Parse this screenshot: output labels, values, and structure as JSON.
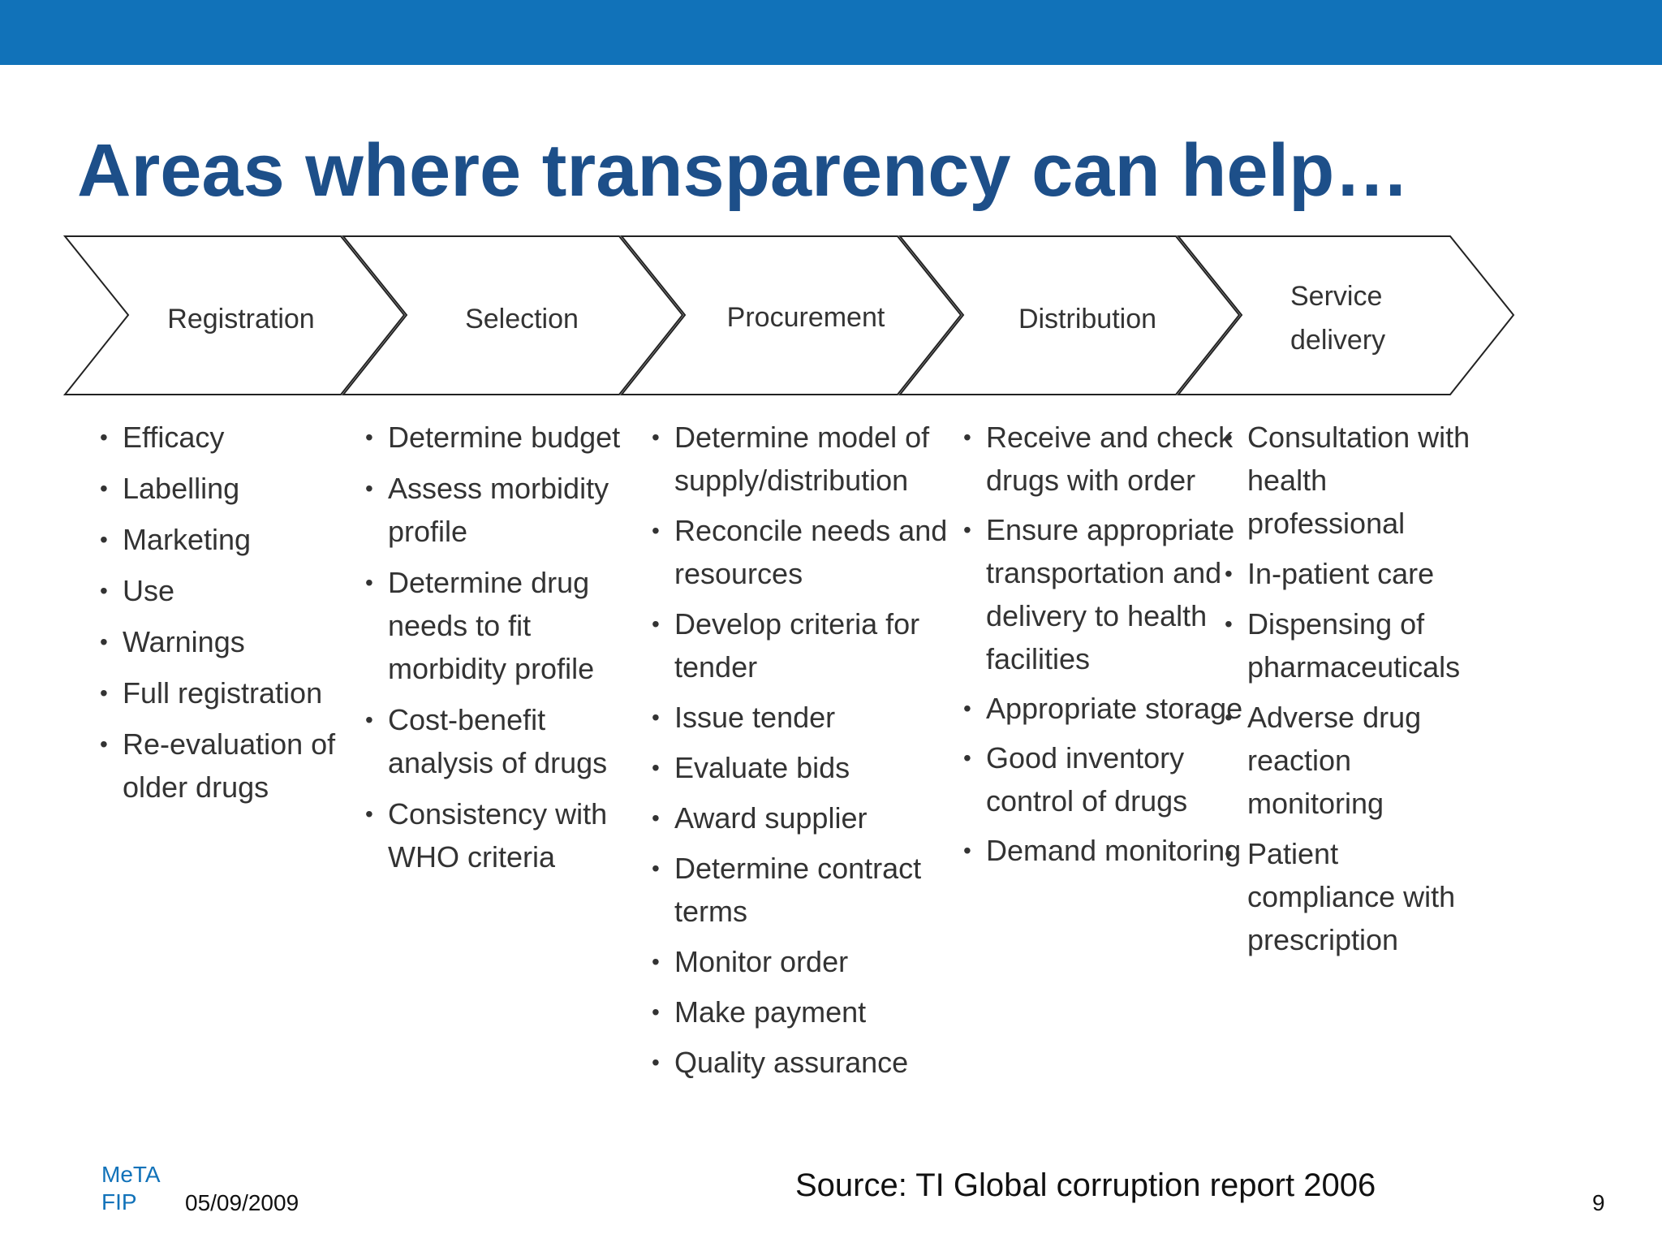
{
  "header": {
    "title": "Areas where transparency can help…"
  },
  "stages": [
    {
      "label": "Registration",
      "items": [
        "Efficacy",
        "Labelling",
        "Marketing",
        "Use",
        "Warnings",
        "Full registration",
        "Re-evaluation of older drugs"
      ]
    },
    {
      "label": "Selection",
      "items": [
        "Determine budget",
        "Assess morbidity profile",
        "Determine drug needs to fit morbidity profile",
        "Cost-benefit analysis of drugs",
        "Consistency with WHO criteria"
      ]
    },
    {
      "label": "Procurement",
      "items": [
        "Determine model of supply/distribution",
        "Reconcile needs and resources",
        "Develop criteria for tender",
        "Issue tender",
        "Evaluate bids",
        "Award supplier",
        "Determine contract terms",
        "Monitor order",
        "Make payment",
        "Quality assurance"
      ]
    },
    {
      "label": "Distribution",
      "items": [
        "Receive and check drugs with order",
        "Ensure appropriate transportation and delivery to health facilities",
        "Appropriate storage",
        "Good inventory control of drugs",
        "Demand monitoring"
      ]
    },
    {
      "label": "Service delivery",
      "items": [
        "Consultation with health professional",
        "In-patient care",
        "Dispensing of pharmaceuticals",
        "Adverse drug reaction monitoring",
        "Patient compliance with prescription"
      ]
    }
  ],
  "footer": {
    "org_line1": "MeTA",
    "org_line2": "FIP",
    "date": "05/09/2009",
    "source": "Source: TI Global corruption report 2006",
    "page_number": "9"
  },
  "colors": {
    "top_bar": "#1172b9",
    "title": "#1d4f89",
    "org_text": "#1172b9"
  }
}
